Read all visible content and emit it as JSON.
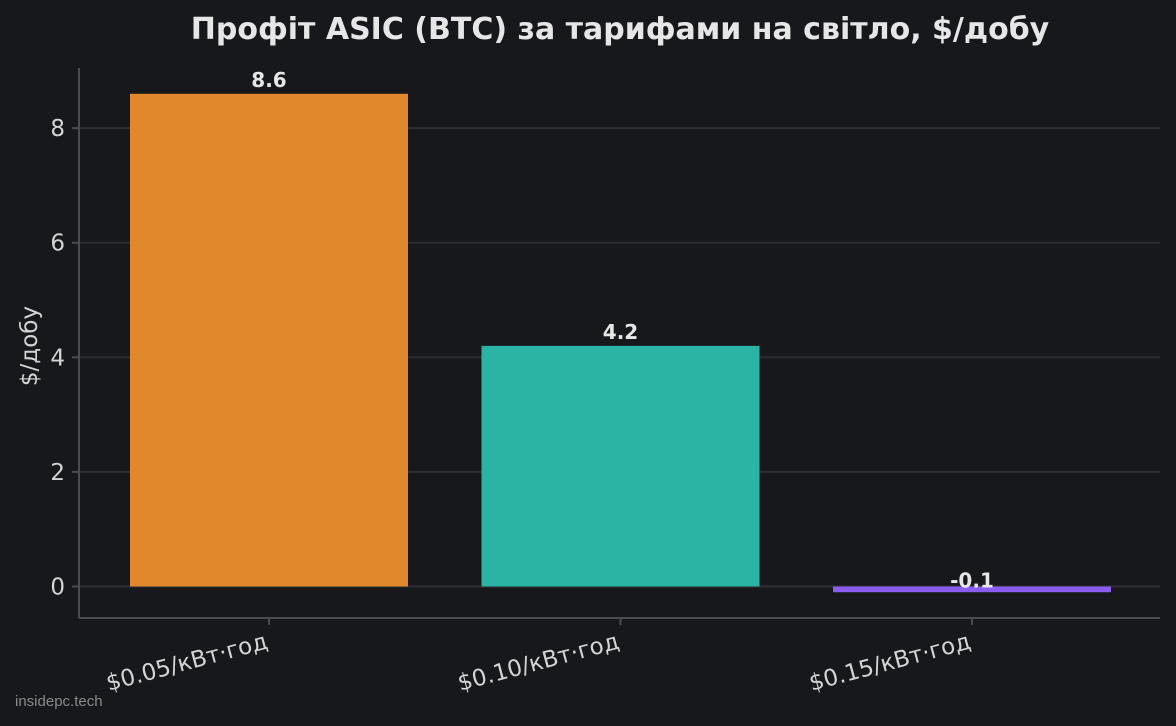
{
  "chart_data": {
    "type": "bar",
    "title": "Профіт ASIC (BTC) за тарифами на світло, $/добу",
    "xlabel": "",
    "ylabel": "$/добу",
    "categories": [
      "$0.05/кВт·год",
      "$0.10/кВт·год",
      "$0.15/кВт·год"
    ],
    "values": [
      8.6,
      4.2,
      -0.1
    ],
    "value_labels": [
      "8.6",
      "4.2",
      "-0.1"
    ],
    "colors": [
      "#e0882b",
      "#2bb3a3",
      "#8a5cf0"
    ],
    "ylim": [
      -0.55,
      9.05
    ],
    "yticks": [
      0,
      2,
      4,
      6,
      8
    ],
    "grid": "horizontal",
    "legend": "none"
  },
  "theme": {
    "background": "#17181c",
    "grid_color": "#2d2f34",
    "axis_color": "#4a4c52"
  },
  "watermark": "insidepc.tech"
}
